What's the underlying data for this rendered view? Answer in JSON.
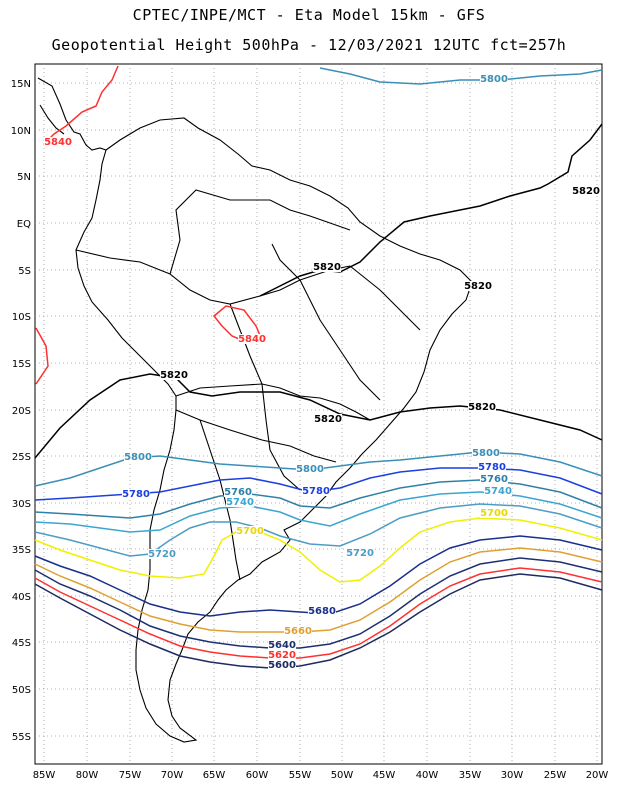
{
  "header": {
    "line1": "CPTEC/INPE/MCT -  Eta Model 15km - GFS",
    "line2": "Geopotential Height 500hPa - 12/03/2021 12UTC fct=257h"
  },
  "lat_labels": [
    "15N",
    "10N",
    "5N",
    "EQ",
    "5S",
    "10S",
    "15S",
    "20S",
    "25S",
    "30S",
    "35S",
    "40S",
    "45S",
    "50S",
    "55S"
  ],
  "lon_labels": [
    "85W",
    "80W",
    "75W",
    "70W",
    "65W",
    "60W",
    "55W",
    "50W",
    "45W",
    "40W",
    "35W",
    "30W",
    "25W",
    "20W"
  ],
  "contours": [
    {
      "label": "5840",
      "color": "#ff3030"
    },
    {
      "label": "5820",
      "color": "#000000"
    },
    {
      "label": "5800",
      "color": "#3a8fb7"
    },
    {
      "label": "5780",
      "color": "#1c3fe0"
    },
    {
      "label": "5760",
      "color": "#2f80a8"
    },
    {
      "label": "5740",
      "color": "#3aa6d0"
    },
    {
      "label": "5720",
      "color": "#4c9cc4"
    },
    {
      "label": "5700",
      "color": "#f0f000"
    },
    {
      "label": "5680",
      "color": "#1a2f8a"
    },
    {
      "label": "5660",
      "color": "#e0a030"
    },
    {
      "label": "5640",
      "color": "#1c3070"
    },
    {
      "label": "5620",
      "color": "#ff3030"
    },
    {
      "label": "5600",
      "color": "#1c2a60"
    }
  ],
  "contour_label_instances": [
    {
      "text": "5800",
      "color": "#3a8fb7"
    },
    {
      "text": "5840",
      "color": "#ff3030"
    },
    {
      "text": "5820",
      "color": "#000000"
    },
    {
      "text": "5820",
      "color": "#000000"
    },
    {
      "text": "5820",
      "color": "#000000"
    },
    {
      "text": "5840",
      "color": "#ff3030"
    },
    {
      "text": "5820",
      "color": "#000000"
    },
    {
      "text": "5820",
      "color": "#000000"
    },
    {
      "text": "5820",
      "color": "#000000"
    },
    {
      "text": "5800",
      "color": "#3a8fb7"
    },
    {
      "text": "5800",
      "color": "#3a8fb7"
    },
    {
      "text": "5800",
      "color": "#3a8fb7"
    },
    {
      "text": "5780",
      "color": "#1c3fe0"
    },
    {
      "text": "5780",
      "color": "#1c3fe0"
    },
    {
      "text": "5780",
      "color": "#1c3fe0"
    },
    {
      "text": "5760",
      "color": "#2f80a8"
    },
    {
      "text": "5760",
      "color": "#2f80a8"
    },
    {
      "text": "5740",
      "color": "#3aa6d0"
    },
    {
      "text": "5740",
      "color": "#3aa6d0"
    },
    {
      "text": "5720",
      "color": "#4c9cc4"
    },
    {
      "text": "5720",
      "color": "#4c9cc4"
    },
    {
      "text": "5700",
      "color": "#e8d800"
    },
    {
      "text": "5700",
      "color": "#e8d800"
    },
    {
      "text": "5680",
      "color": "#1a2f8a"
    },
    {
      "text": "5660",
      "color": "#e0a030"
    },
    {
      "text": "5640",
      "color": "#1c3070"
    },
    {
      "text": "5620",
      "color": "#ff3030"
    },
    {
      "text": "5600",
      "color": "#1c2a60"
    }
  ]
}
